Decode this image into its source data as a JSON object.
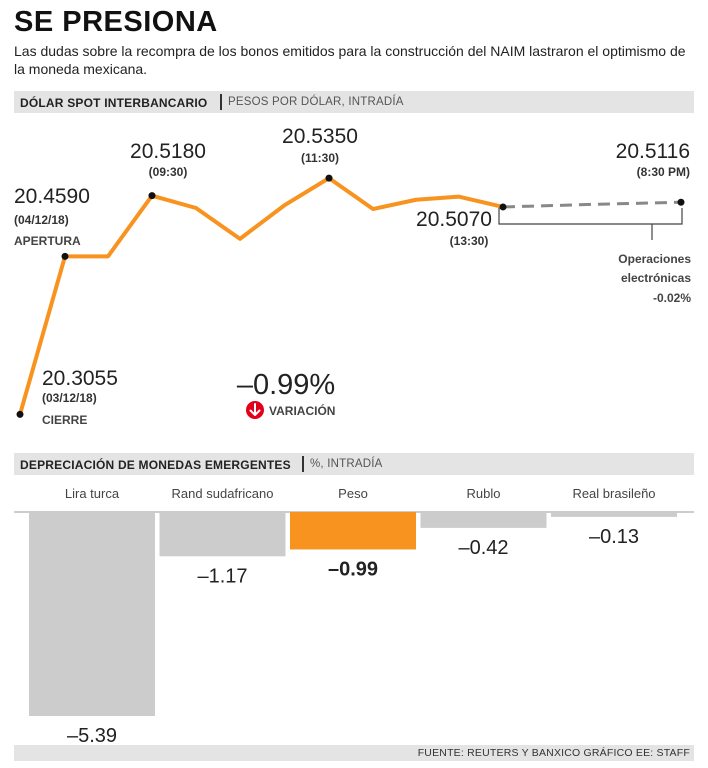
{
  "title": "SE PRESIONA",
  "subtitle": "Las dudas sobre la recompra de los bonos emitidos para la construcción del NAIM lastraron el optimismo de la moneda mexicana.",
  "section1": {
    "bold": "DÓLAR SPOT INTERBANCARIO",
    "light": "PESOS POR DÓLAR, INTRADÍA"
  },
  "section2": {
    "bold": "DEPRECIACIÓN DE MONEDAS EMERGENTES",
    "light": "%, INTRADÍA"
  },
  "source": "FUENTE: REUTERS Y BANXICO GRÁFICO EE: STAFF",
  "colors": {
    "accent": "#f7931e",
    "gray_bar": "#cccccc",
    "dash": "#888888",
    "arrow": "#e2001a"
  },
  "line_labels": {
    "cierre": {
      "value": "20.3055",
      "date": "(03/12/18)",
      "label": "CIERRE"
    },
    "apertura": {
      "value": "20.4590",
      "date": "(04/12/18)",
      "label": "APERTURA"
    },
    "p0930": {
      "value": "20.5180",
      "time": "(09:30)"
    },
    "p1130": {
      "value": "20.5350",
      "time": "(11:30)"
    },
    "p1330": {
      "value": "20.5070",
      "time": "(13:30)"
    },
    "p2030": {
      "value": "20.5116",
      "time": "(8:30 PM)"
    },
    "electronic": {
      "line1": "Operaciones",
      "line2": "electrónicas",
      "line3": "-0.02%"
    },
    "variation": {
      "value": "–0.99%",
      "label": "VARIACIÓN",
      "icon": "down-arrow-icon"
    }
  },
  "chart_data": [
    {
      "type": "line",
      "title": "DÓLAR SPOT INTERBANCARIO",
      "ylabel": "PESOS POR DÓLAR, INTRADÍA",
      "ylim": [
        20.3,
        20.54
      ],
      "series": [
        {
          "name": "Intradía",
          "style": "solid",
          "values": [
            20.3055,
            20.459,
            20.459,
            20.518,
            20.506,
            20.476,
            20.509,
            20.535,
            20.505,
            20.514,
            20.517,
            20.507
          ]
        },
        {
          "name": "Operaciones electrónicas",
          "style": "dashed",
          "values": [
            20.507,
            20.5095,
            20.5116
          ]
        }
      ],
      "annotations": [
        "20.3055 (03/12/18) CIERRE",
        "20.4590 (04/12/18) APERTURA",
        "20.5180 (09:30)",
        "20.5350 (11:30)",
        "20.5070 (13:30)",
        "20.5116 (8:30 PM)"
      ]
    },
    {
      "type": "bar",
      "title": "DEPRECIACIÓN DE MONEDAS EMERGENTES",
      "ylabel": "%, INTRADÍA",
      "categories": [
        "Lira turca",
        "Rand sudafricano",
        "Peso",
        "Rublo",
        "Real brasileño"
      ],
      "values": [
        -5.39,
        -1.17,
        -0.99,
        -0.42,
        -0.13
      ],
      "labels": [
        "–5.39",
        "–1.17",
        "–0.99",
        "–0.42",
        "–0.13"
      ],
      "highlight": "Peso"
    }
  ]
}
